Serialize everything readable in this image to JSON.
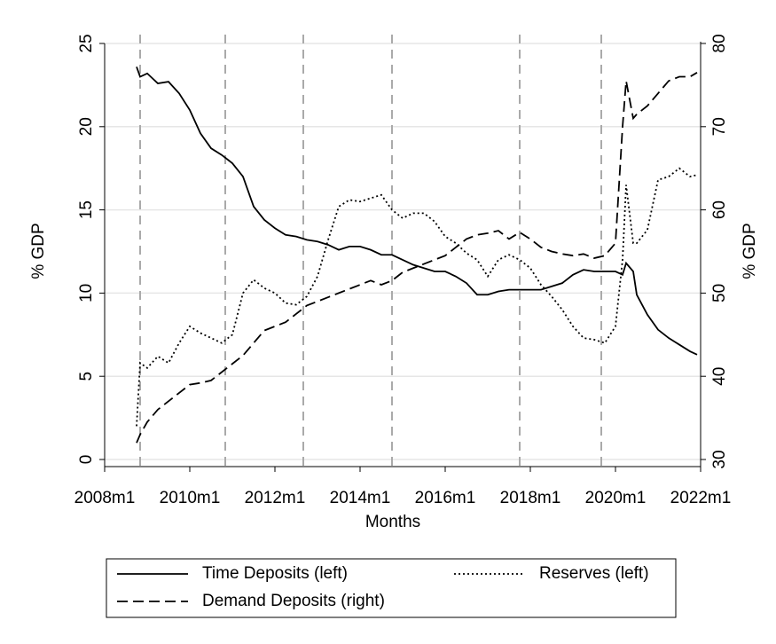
{
  "chart_data": {
    "type": "line",
    "x_label": "Months",
    "y_label": "% GDP",
    "y2_label": "% GDP",
    "x": [
      "2008m10",
      "2008m11",
      "2009m1",
      "2009m4",
      "2009m7",
      "2009m10",
      "2010m1",
      "2010m4",
      "2010m7",
      "2010m10",
      "2011m1",
      "2011m4",
      "2011m7",
      "2011m10",
      "2012m1",
      "2012m4",
      "2012m7",
      "2012m10",
      "2013m1",
      "2013m4",
      "2013m7",
      "2013m10",
      "2014m1",
      "2014m4",
      "2014m7",
      "2014m10",
      "2015m1",
      "2015m4",
      "2015m7",
      "2015m10",
      "2016m1",
      "2016m4",
      "2016m7",
      "2016m10",
      "2017m1",
      "2017m4",
      "2017m7",
      "2017m10",
      "2018m1",
      "2018m4",
      "2018m7",
      "2018m10",
      "2019m1",
      "2019m4",
      "2019m7",
      "2019m10",
      "2020m1",
      "2020m3",
      "2020m4",
      "2020m6",
      "2020m7",
      "2020m10",
      "2021m1",
      "2021m4",
      "2021m7",
      "2021m10",
      "2021m12"
    ],
    "series": [
      {
        "name": "Time Deposits (left)",
        "color": "#000000",
        "style": "solid",
        "values": [
          23.6,
          23.0,
          23.2,
          22.6,
          22.7,
          22.0,
          21.0,
          19.6,
          18.7,
          18.3,
          17.8,
          17.0,
          15.2,
          14.4,
          13.9,
          13.5,
          13.4,
          13.2,
          13.1,
          12.9,
          12.6,
          12.8,
          12.8,
          12.6,
          12.3,
          12.3,
          12.0,
          11.7,
          11.5,
          11.3,
          11.3,
          11.0,
          10.6,
          9.9,
          9.9,
          10.1,
          10.2,
          10.2,
          10.2,
          10.2,
          10.4,
          10.6,
          11.1,
          11.4,
          11.3,
          11.3,
          11.3,
          11.1,
          11.8,
          11.3,
          9.9,
          8.7,
          7.8,
          7.3,
          6.9,
          6.5,
          6.3
        ]
      },
      {
        "name": "Reserves (left)",
        "color": "#000000",
        "style": "dotted",
        "values": [
          2.0,
          5.8,
          5.5,
          6.2,
          5.8,
          7.0,
          8.0,
          7.6,
          7.3,
          7.0,
          7.5,
          10.0,
          10.8,
          10.3,
          10.0,
          9.4,
          9.3,
          9.8,
          11.0,
          13.2,
          15.2,
          15.6,
          15.5,
          15.7,
          15.9,
          15.0,
          14.5,
          14.8,
          14.8,
          14.3,
          13.4,
          13.0,
          12.4,
          12.0,
          11.0,
          12.0,
          12.3,
          12.0,
          11.5,
          10.5,
          9.8,
          9.0,
          8.0,
          7.3,
          7.2,
          7.0,
          8.0,
          12.0,
          16.5,
          13.0,
          13.0,
          13.8,
          16.8,
          17.0,
          17.5,
          17.0,
          17.1
        ]
      },
      {
        "name": "Demand Deposits (right)",
        "color": "#000000",
        "style": "dashed",
        "axis": "y2",
        "values": [
          32,
          33,
          34.5,
          36,
          37,
          38,
          39,
          39.2,
          39.5,
          40.5,
          41.5,
          42.5,
          44,
          45.5,
          46,
          46.5,
          47.5,
          48.5,
          49,
          49.5,
          50,
          50.5,
          51,
          51.5,
          51,
          51.5,
          52.5,
          53,
          53.5,
          54,
          54.5,
          55.5,
          56.5,
          57,
          57.2,
          57.5,
          56.5,
          57.3,
          56.5,
          55.5,
          55,
          54.7,
          54.5,
          54.7,
          54.2,
          54.5,
          56,
          70,
          75.5,
          71,
          71.5,
          72.5,
          74,
          75.5,
          76,
          76,
          76.5
        ]
      }
    ],
    "vlines": [
      "2008m11",
      "2010m11",
      "2012m9",
      "2014m10",
      "2017m10",
      "2019m9"
    ],
    "xlim": [
      "2008m1",
      "2022m1"
    ],
    "xticks": [
      "2008m1",
      "2010m1",
      "2012m1",
      "2014m1",
      "2016m1",
      "2018m1",
      "2020m1",
      "2022m1"
    ],
    "ylim": [
      0,
      25
    ],
    "yticks": [
      0,
      5,
      10,
      15,
      20,
      25
    ],
    "y2lim": [
      30,
      80
    ],
    "y2ticks": [
      30,
      40,
      50,
      60,
      70,
      80
    ],
    "grid": true,
    "legend": "bottom"
  }
}
